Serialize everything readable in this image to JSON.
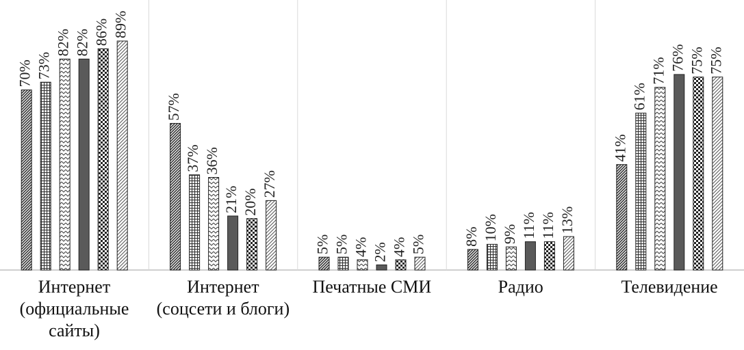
{
  "chart_data": {
    "type": "bar",
    "categories": [
      "Интернет (официальные сайты)",
      "Интернет (соцсети и блоги)",
      "Печатные СМИ",
      "Радио",
      "Телевидение"
    ],
    "series": [
      {
        "pattern": "dense-diagonal",
        "values": [
          70,
          57,
          5,
          8,
          41
        ],
        "value_labels": [
          "70%",
          "57%",
          "5%",
          "8%",
          "41%"
        ]
      },
      {
        "pattern": "grid",
        "values": [
          73,
          37,
          5,
          10,
          61
        ],
        "value_labels": [
          "73%",
          "37%",
          "5%",
          "10%",
          "61%"
        ]
      },
      {
        "pattern": "zigzag",
        "values": [
          82,
          36,
          4,
          9,
          71
        ],
        "value_labels": [
          "82%",
          "36%",
          "4%",
          "9%",
          "71%"
        ]
      },
      {
        "pattern": "solid",
        "values": [
          82,
          21,
          2,
          11,
          76
        ],
        "value_labels": [
          "82%",
          "21%",
          "2%",
          "11%",
          "76%"
        ]
      },
      {
        "pattern": "checker",
        "values": [
          86,
          20,
          4,
          11,
          75
        ],
        "value_labels": [
          "86%",
          "20%",
          "4%",
          "11%",
          "75%"
        ]
      },
      {
        "pattern": "light-diagonal",
        "values": [
          89,
          27,
          5,
          13,
          75
        ],
        "value_labels": [
          "89%",
          "27%",
          "5%",
          "13%",
          "75%"
        ]
      }
    ]
  }
}
